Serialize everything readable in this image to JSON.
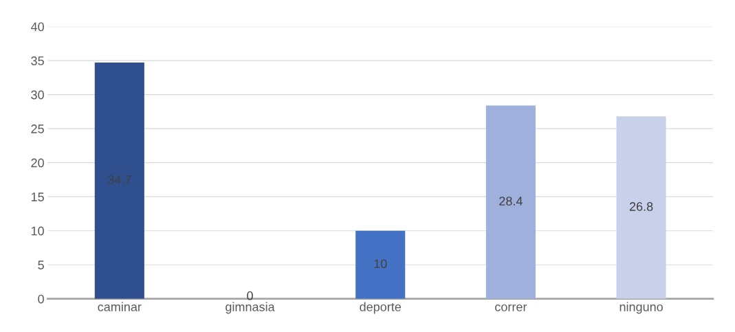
{
  "chart_data": {
    "type": "bar",
    "categories": [
      "caminar",
      "gimnasia",
      "deporte",
      "correr",
      "ninguno"
    ],
    "values": [
      34.7,
      0,
      10,
      28.4,
      26.8
    ],
    "colors": [
      "#2f4f8f",
      "#3a5fa8",
      "#4472c4",
      "#9fb0dc",
      "#c9d0ea"
    ],
    "ylim": [
      0,
      40
    ],
    "yticks": [
      0,
      5,
      10,
      15,
      20,
      25,
      30,
      35,
      40
    ],
    "grid": "y",
    "data_labels": true
  }
}
